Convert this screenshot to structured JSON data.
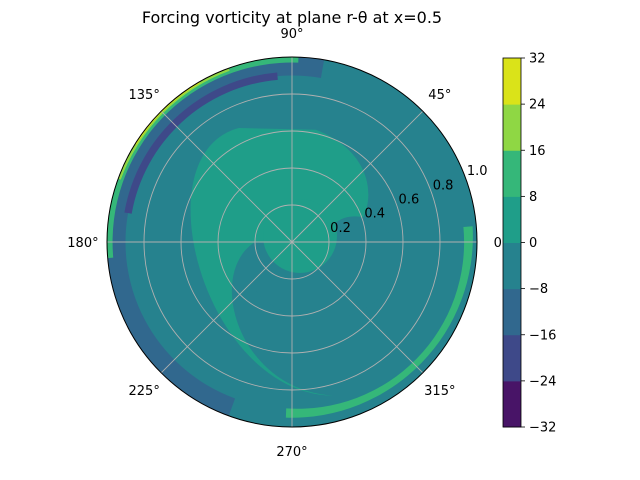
{
  "chart_data": {
    "type": "polar-contour",
    "title": "Forcing vorticity at plane r-θ at x=0.5",
    "theta_tick_labels": [
      "0°",
      "45°",
      "90°",
      "135°",
      "180°",
      "225°",
      "270°",
      "315°"
    ],
    "theta_tick_values_deg": [
      0,
      45,
      90,
      135,
      180,
      225,
      270,
      315
    ],
    "r_tick_labels": [
      "0.2",
      "0.4",
      "0.6",
      "0.8",
      "1.0"
    ],
    "r_tick_values": [
      0.2,
      0.4,
      0.6,
      0.8,
      1.0
    ],
    "rlim": [
      0,
      1.0
    ],
    "grid": true,
    "colorbar": {
      "position": "right",
      "levels": [
        -32,
        -24,
        -16,
        -8,
        0,
        8,
        16,
        24,
        32
      ],
      "tick_labels": [
        "32",
        "24",
        "16",
        "8",
        "0",
        "−8",
        "−16",
        "−24",
        "−32"
      ],
      "colors": [
        "#481467",
        "#3e4989",
        "#31688e",
        "#26828e",
        "#1f9e89",
        "#35b779",
        "#8fd744",
        "#dae319"
      ]
    },
    "regions": {
      "background_band": "#26828e",
      "positive_lobe": "#1f9e89",
      "negative_lobe": "#26828e",
      "outer_negative": "#31688e",
      "strong_negative": "#3e4989",
      "positive_arc": "#35b779",
      "strong_positive": "#8fd744",
      "peak_positive": "#dae319"
    }
  }
}
